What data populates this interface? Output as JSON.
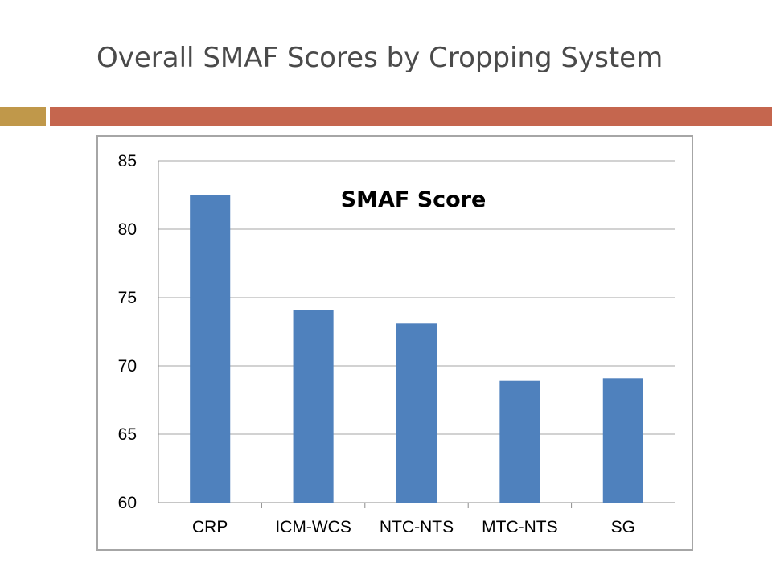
{
  "slide": {
    "title": "Overall SMAF Scores by Cropping System",
    "accent_gold": "#C0984A",
    "accent_red": "#C5664E"
  },
  "chart_data": {
    "type": "bar",
    "title": "SMAF Score",
    "categories": [
      "CRP",
      "ICM-WCS",
      "NTC-NTS",
      "MTC-NTS",
      "SG"
    ],
    "values": [
      82.5,
      74.1,
      73.1,
      68.9,
      69.1
    ],
    "ylim": [
      60,
      85
    ],
    "yticks": [
      60,
      65,
      70,
      75,
      80,
      85
    ],
    "grid": true,
    "bar_color": "#4F81BD",
    "xlabel": "",
    "ylabel": ""
  }
}
